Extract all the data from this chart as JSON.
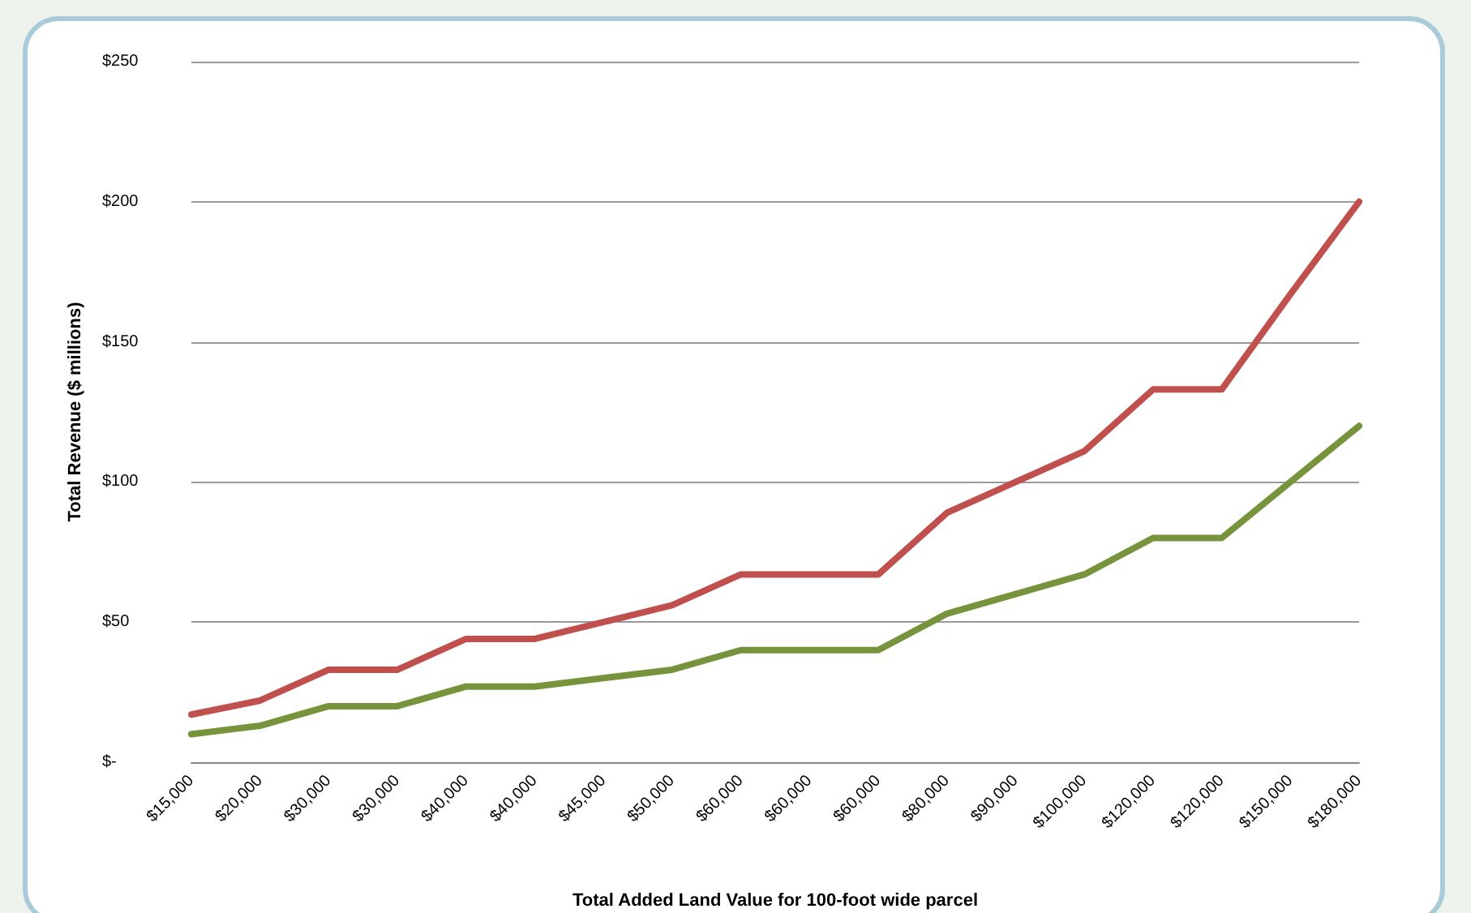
{
  "chart_data": {
    "type": "line",
    "xlabel": "Total Added Land Value for 100-foot wide parcel",
    "ylabel": "Total Revenue ($ millions)",
    "categories": [
      "$15,000",
      "$20,000",
      "$30,000",
      "$30,000",
      "$40,000",
      "$40,000",
      "$45,000",
      "$50,000",
      "$60,000",
      "$60,000",
      "$60,000",
      "$80,000",
      "$90,000",
      "$100,000",
      "$120,000",
      "$120,000",
      "$150,000",
      "$180,000"
    ],
    "series": [
      {
        "color": "#c0504d",
        "values": [
          17,
          22,
          33,
          33,
          44,
          44,
          50,
          56,
          67,
          67,
          67,
          89,
          100,
          111,
          133,
          133,
          167,
          200
        ]
      },
      {
        "color": "#77933c",
        "values": [
          10,
          13,
          20,
          20,
          27,
          27,
          30,
          33,
          40,
          40,
          40,
          53,
          60,
          67,
          80,
          80,
          100,
          120
        ]
      }
    ],
    "ylim": [
      0,
      250
    ],
    "yticks": [
      {
        "value": 0,
        "label": "$-"
      },
      {
        "value": 50,
        "label": "$50"
      },
      {
        "value": 100,
        "label": "$100"
      },
      {
        "value": 150,
        "label": "$150"
      },
      {
        "value": 200,
        "label": "$200"
      },
      {
        "value": 250,
        "label": "$250"
      }
    ],
    "grid": "y",
    "marker": "none",
    "line_style": "solid"
  }
}
